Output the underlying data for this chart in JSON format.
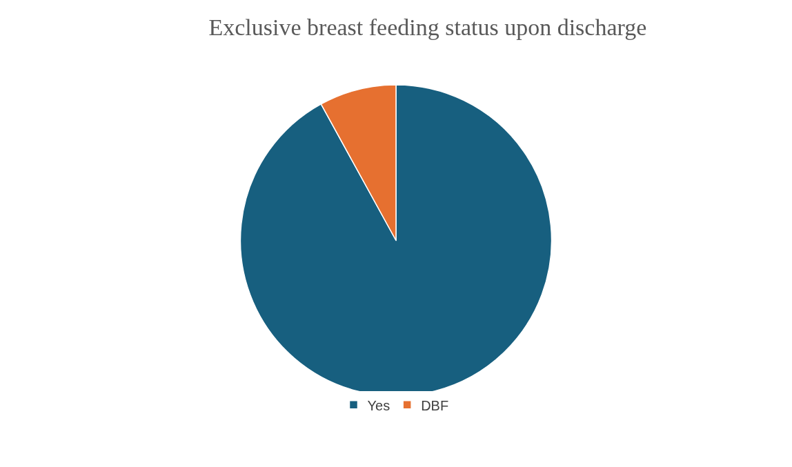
{
  "chart_data": {
    "type": "pie",
    "title": "Exclusive breast feeding status upon discharge",
    "categories": [
      "Yes",
      "DBF"
    ],
    "values": [
      92,
      8
    ],
    "colors": [
      "#175f7f",
      "#e67030"
    ],
    "legend": "bottom"
  }
}
